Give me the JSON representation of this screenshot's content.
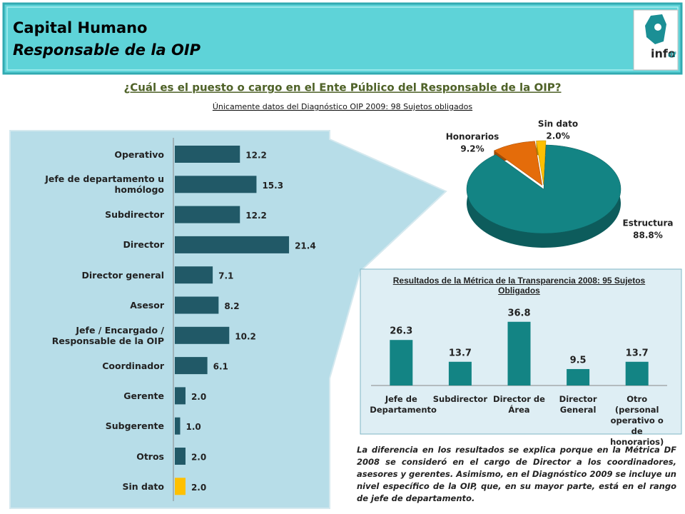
{
  "header": {
    "title": "Capital Humano",
    "subtitle": "Responsable de la OIP",
    "logo": "info",
    "logo_suffix": "df"
  },
  "question": "¿Cuál es el puesto o cargo en el Ente Público del Responsable de la OIP?",
  "source": "Únicamente datos del Diagnóstico OIP 2009:  98 Sujetos obligados",
  "note": "La diferencia en los resultados se explica porque en la Métrica DF 2008 se consideró en el cargo de Director a los coordinadores, asesores y gerentes. Asimismo, en el Diagnóstico 2009 se incluye un nivel específico de la OIP, que, en su mayor parte, está en el rango de jefe de departamento.",
  "chart_data": [
    {
      "type": "hbar",
      "categories": [
        "Operativo",
        "Jefe de departamento u homólogo",
        "Subdirector",
        "Director",
        "Director general",
        "Asesor",
        "Jefe / Encargado / Responsable de la OIP",
        "Coordinador",
        "Gerente",
        "Subgerente",
        "Otros",
        "Sin dato"
      ],
      "values": [
        12.2,
        15.3,
        12.2,
        21.4,
        7.1,
        8.2,
        10.2,
        6.1,
        2,
        1,
        2,
        2
      ],
      "value_labels": [
        "12.2",
        "15.3",
        "12.2",
        "21.4",
        "7.1",
        "8.2",
        "10.2",
        "6.1",
        "2.0",
        "1.0",
        "2.0",
        "2.0"
      ],
      "colors": [
        "#215967",
        "#215967",
        "#215967",
        "#215967",
        "#215967",
        "#215967",
        "#215967",
        "#215967",
        "#215967",
        "#215967",
        "#215967",
        "#ffc000"
      ],
      "xlim": [
        0,
        25
      ]
    },
    {
      "type": "pie",
      "categories": [
        "Estructura",
        "Honorarios",
        "Sin dato"
      ],
      "values": [
        88.8,
        9.2,
        2
      ],
      "value_labels": [
        "88.8%",
        "9.2%",
        "2.0%"
      ],
      "colors": [
        "#138484",
        "#e46c0a",
        "#ffc000"
      ]
    },
    {
      "type": "bar",
      "title": "Resultados de la Métrica de la Transparencia 2008: 95 Sujetos Obligados",
      "categories": [
        "Jefe de Departamento",
        "Subdirector",
        "Director de Área",
        "Director General",
        "Otro (personal operativo o de honorarios)"
      ],
      "values": [
        26.3,
        13.7,
        36.8,
        9.5,
        13.7
      ],
      "color": "#138484",
      "ylim": [
        0,
        40
      ]
    }
  ]
}
